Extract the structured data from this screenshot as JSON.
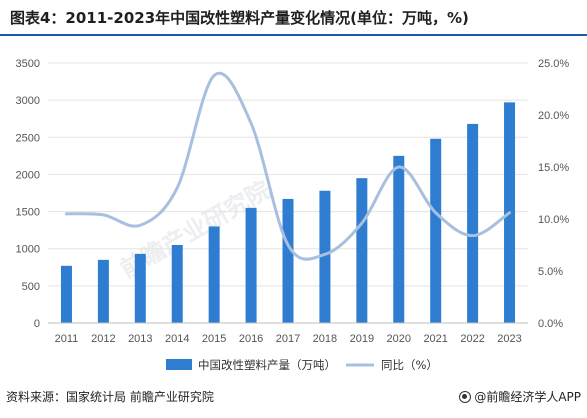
{
  "title": "图表4：2011-2023年中国改性塑料产量变化情况(单位：万吨，%)",
  "source": "资料来源：国家统计局 前瞻产业研究院",
  "brand": "@前瞻经济学人APP",
  "watermark": "前瞻产业研究院",
  "chart_data": {
    "type": "bar",
    "categories": [
      "2011",
      "2012",
      "2013",
      "2014",
      "2015",
      "2016",
      "2017",
      "2018",
      "2019",
      "2020",
      "2021",
      "2022",
      "2023"
    ],
    "series": [
      {
        "name": "中国改性塑料产量（万吨）",
        "type": "bar",
        "axis": "left",
        "color": "#2e7dd1",
        "values": [
          770,
          850,
          930,
          1050,
          1300,
          1550,
          1670,
          1780,
          1950,
          2250,
          2480,
          2680,
          2970
        ]
      },
      {
        "name": "同比（%）",
        "type": "line",
        "axis": "right",
        "color": "#a8bfe0",
        "values": [
          10.5,
          10.4,
          9.4,
          13.0,
          23.8,
          19.2,
          7.5,
          6.6,
          9.6,
          15.0,
          10.6,
          8.4,
          10.6
        ]
      }
    ],
    "ylim": [
      0,
      3500
    ],
    "yticks": [
      0,
      500,
      1000,
      1500,
      2000,
      2500,
      3000,
      3500
    ],
    "y2lim": [
      0,
      25
    ],
    "y2ticks": [
      "0.0%",
      "5.0%",
      "10.0%",
      "15.0%",
      "20.0%",
      "25.0%"
    ],
    "grid": true,
    "legend": "bottom"
  }
}
